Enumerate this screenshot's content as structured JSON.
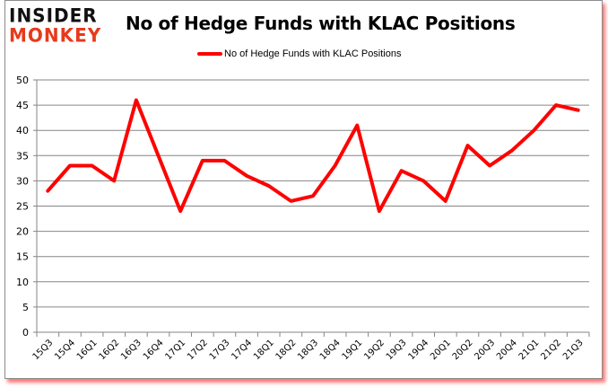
{
  "logo": {
    "line1": "INSIDER",
    "line2": "MONKEY"
  },
  "colors": {
    "series": "#ff0000",
    "grid": "#868686",
    "logo_red": "#e8391c",
    "shadow": "#ff0000"
  },
  "chart_data": {
    "type": "line",
    "title": "No of Hedge Funds with KLAC Positions",
    "xlabel": "",
    "ylabel": "",
    "ylim": [
      0,
      50
    ],
    "yticks": [
      0,
      5,
      10,
      15,
      20,
      25,
      30,
      35,
      40,
      45,
      50
    ],
    "grid": true,
    "legend_position": "top",
    "categories": [
      "15Q3",
      "15Q4",
      "16Q1",
      "16Q2",
      "16Q3",
      "16Q4",
      "17Q1",
      "17Q2",
      "17Q3",
      "17Q4",
      "18Q1",
      "18Q2",
      "18Q3",
      "18Q4",
      "19Q1",
      "19Q2",
      "19Q3",
      "19Q4",
      "20Q1",
      "20Q2",
      "20Q3",
      "20Q4",
      "21Q1",
      "21Q2",
      "21Q3"
    ],
    "series": [
      {
        "name": "No of Hedge Funds with KLAC Positions",
        "color": "#ff0000",
        "values": [
          28,
          33,
          33,
          30,
          46,
          35,
          24,
          34,
          34,
          31,
          29,
          26,
          27,
          33,
          41,
          24,
          32,
          30,
          26,
          37,
          33,
          36,
          40,
          45,
          44
        ]
      }
    ]
  }
}
